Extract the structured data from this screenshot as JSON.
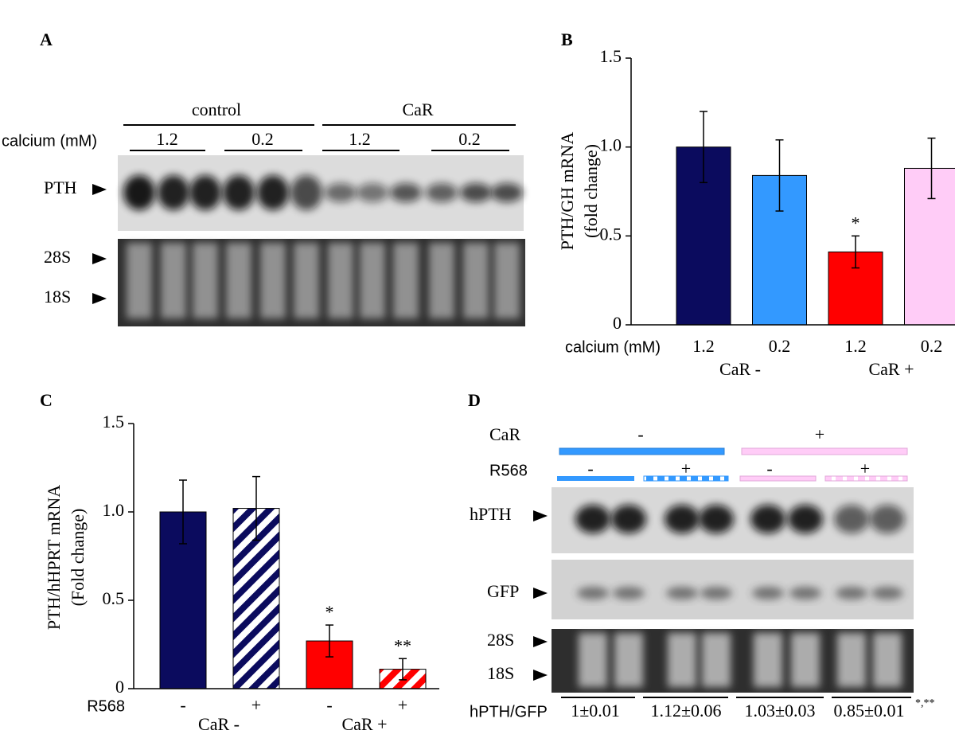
{
  "panel_a": {
    "letter": "A",
    "groups": [
      "control",
      "CaR"
    ],
    "calcium_label": "calcium (mM)",
    "concentrations": [
      "1.2",
      "0.2",
      "1.2",
      "0.2"
    ],
    "bands": [
      "PTH",
      "28S",
      "18S"
    ]
  },
  "chart_data": [
    {
      "panel": "B",
      "type": "bar",
      "categories": [
        "1.2",
        "0.2",
        "1.2",
        "0.2"
      ],
      "groups": [
        "CaR -",
        "CaR +"
      ],
      "x_label": "calcium (mM)",
      "y_label": [
        "PTH/GH mRNA",
        "(fold change)"
      ],
      "values": [
        1.0,
        0.84,
        0.41,
        0.88
      ],
      "errors": [
        0.2,
        0.2,
        0.09,
        0.17
      ],
      "colors": [
        "#0b0b5e",
        "#3399ff",
        "#ff0000",
        "#ffccf7"
      ],
      "hatched": [
        false,
        false,
        false,
        false
      ],
      "annotations": [
        {
          "index": 2,
          "text": "*"
        }
      ],
      "ylim": [
        0,
        1.5
      ],
      "yticks": [
        0,
        0.5,
        {
          "value": 1,
          "label": "1.0"
        },
        1.5
      ]
    },
    {
      "panel": "C",
      "type": "bar",
      "categories": [
        "-",
        "+",
        "-",
        "+"
      ],
      "groups": [
        "CaR -",
        "CaR +"
      ],
      "x_label": "R568",
      "y_label": [
        "PTH/hHPRT mRNA",
        "(Fold change)"
      ],
      "values": [
        1.0,
        1.02,
        0.27,
        0.11
      ],
      "errors": [
        0.18,
        0.18,
        0.09,
        0.06
      ],
      "colors": [
        "#0b0b5e",
        "#0b0b5e",
        "#ff0000",
        "#ff0000"
      ],
      "hatched": [
        false,
        true,
        false,
        true
      ],
      "annotations": [
        {
          "index": 2,
          "text": "*"
        },
        {
          "index": 3,
          "text": "**"
        }
      ],
      "ylim": [
        0,
        1.5
      ],
      "yticks": [
        0,
        0.5,
        {
          "value": 1,
          "label": "1.0"
        },
        1.5
      ]
    }
  ],
  "panel_d": {
    "letter": "D",
    "car_label": "CaR",
    "car_states": [
      "-",
      "+"
    ],
    "r568_label": "R568",
    "r568_states": [
      "-",
      "+",
      "-",
      "+"
    ],
    "bands": [
      "hPTH",
      "GFP",
      "28S",
      "18S"
    ],
    "ratio_label": "hPTH/GFP",
    "ratios": [
      "1±0.01",
      "1.12±0.06",
      "1.03±0.03",
      "0.85±0.01"
    ],
    "ratio_note": "*,**"
  }
}
